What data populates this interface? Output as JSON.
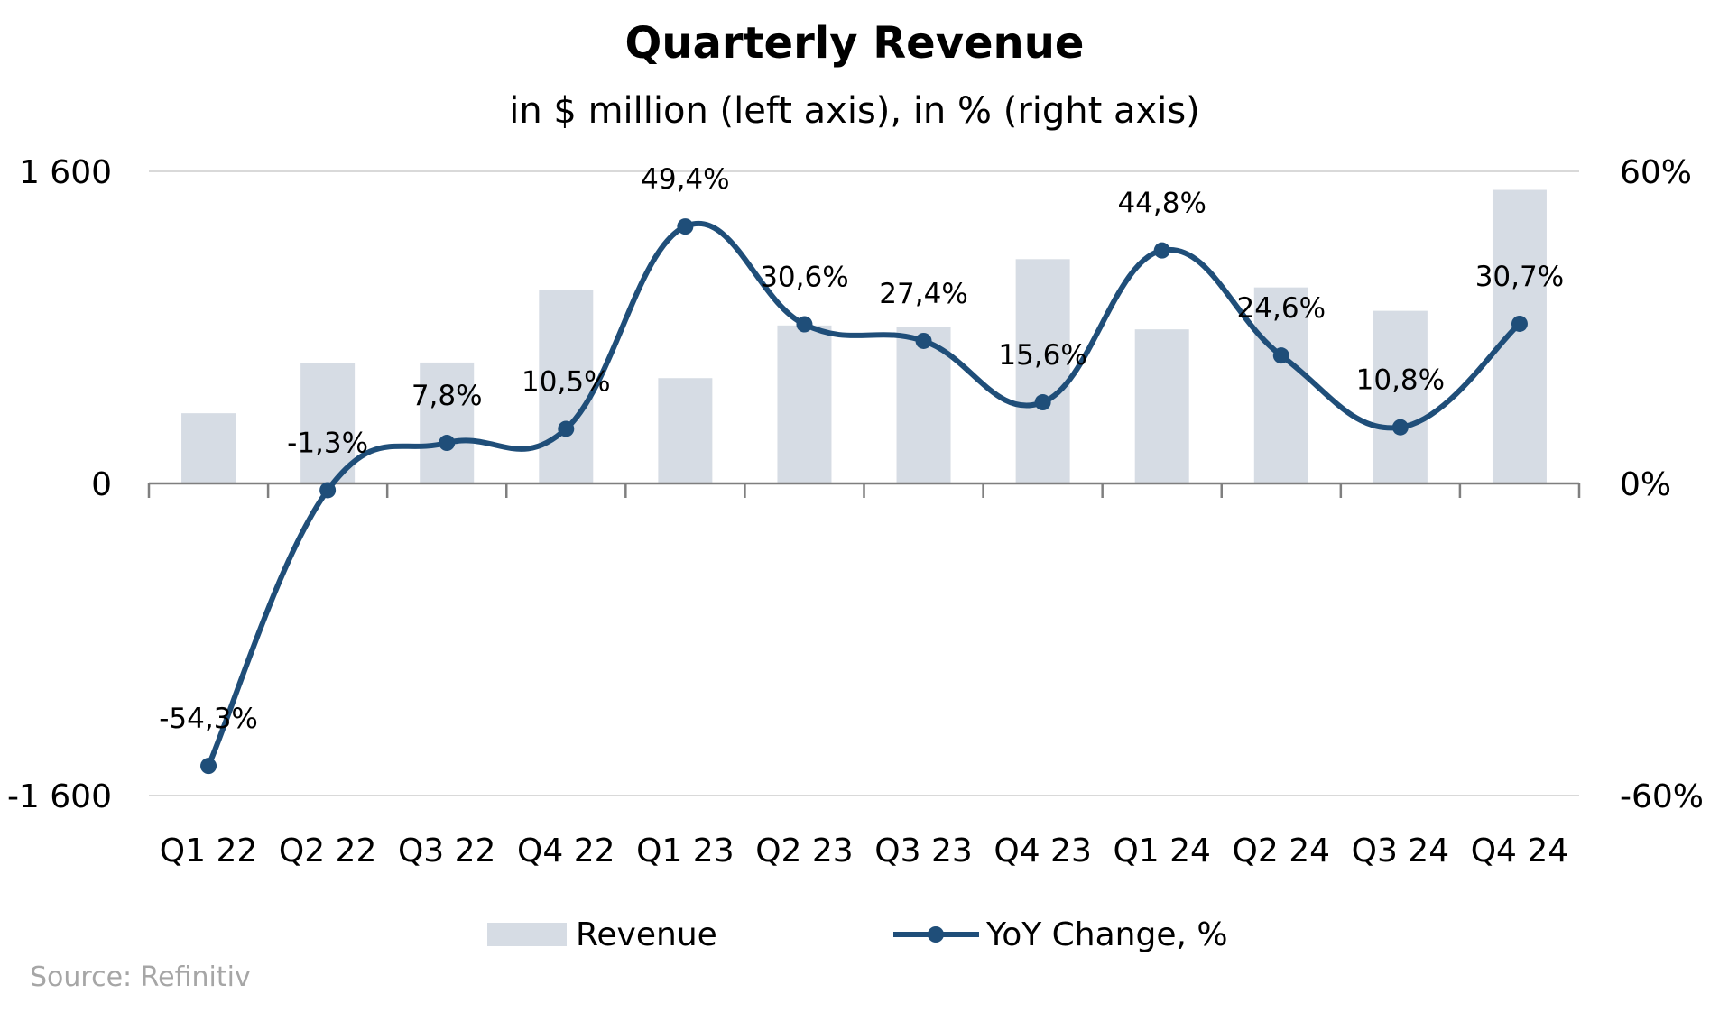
{
  "chart_data": {
    "type": "bar",
    "title": "Quarterly Revenue",
    "subtitle": "in $ million (left axis), in % (right axis)",
    "categories": [
      "Q1 22",
      "Q2 22",
      "Q3 22",
      "Q4 22",
      "Q1 23",
      "Q2 23",
      "Q3 23",
      "Q4 23",
      "Q1 24",
      "Q2 24",
      "Q3 24",
      "Q4 24"
    ],
    "series": [
      {
        "name": "Revenue",
        "type": "bar",
        "axis": "left",
        "color": "#d6dce4",
        "values": [
          360,
          615,
          620,
          990,
          540,
          810,
          800,
          1150,
          790,
          1005,
          885,
          1505
        ]
      },
      {
        "name": "YoY Change, %",
        "type": "line",
        "axis": "right",
        "smooth": true,
        "color": "#1f4e79",
        "values": [
          -54.3,
          -1.3,
          7.8,
          10.5,
          49.4,
          30.6,
          27.4,
          15.6,
          44.8,
          24.6,
          10.8,
          30.7
        ],
        "labels": [
          "-54,3%",
          "-1,3%",
          "7,8%",
          "10,5%",
          "49,4%",
          "30,6%",
          "27,4%",
          "15,6%",
          "44,8%",
          "24,6%",
          "10,8%",
          "30,7%"
        ]
      }
    ],
    "left_axis": {
      "ylim": [
        -1600,
        1600
      ],
      "ticks": [
        1600,
        0,
        -1600
      ],
      "tick_labels": [
        "1 600",
        "0",
        "-1 600"
      ]
    },
    "right_axis": {
      "ylim": [
        -60,
        60
      ],
      "ticks": [
        60,
        0,
        -60
      ],
      "tick_labels": [
        "60%",
        "0%",
        "-60%"
      ]
    },
    "grid": true,
    "legend": {
      "position": "bottom",
      "entries": [
        "Revenue",
        "YoY Change, %"
      ]
    },
    "source": "Source: Refinitiv"
  }
}
